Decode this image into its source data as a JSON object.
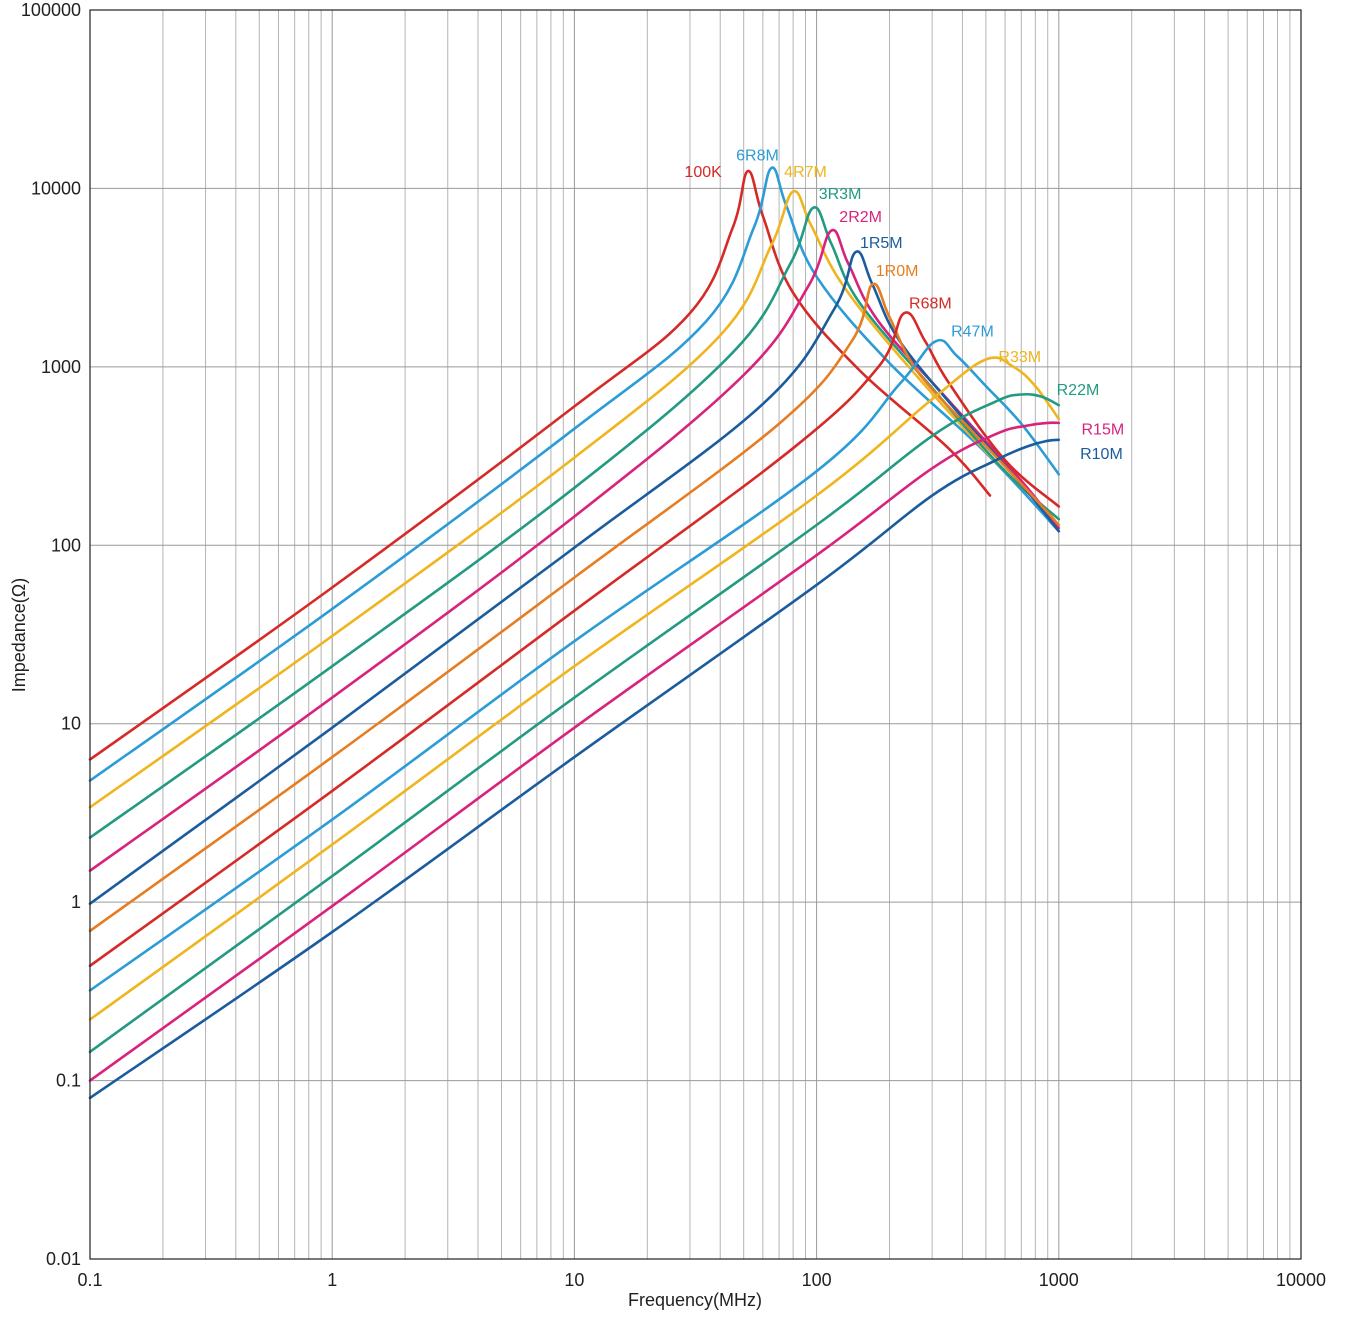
{
  "chart_data": {
    "type": "line",
    "title": "",
    "xlabel": "Frequency(MHz)",
    "ylabel": "Impedance(Ω)",
    "xscale": "log",
    "yscale": "log",
    "xlim": [
      0.1,
      10000
    ],
    "ylim": [
      0.01,
      100000
    ],
    "grid": true,
    "x_ticks": [
      "0.1",
      "1",
      "10",
      "100",
      "1000",
      "10000"
    ],
    "y_ticks": [
      "0.01",
      "0.1",
      "1",
      "10",
      "100",
      "1000",
      "10000",
      "100000"
    ],
    "series": [
      {
        "name": "100K",
        "color": "#d52a27",
        "x": [
          0.1,
          1,
          10,
          30,
          45,
          52,
          60,
          80,
          150,
          350,
          520
        ],
        "y": [
          6.3,
          58,
          600,
          2000,
          6000,
          12500,
          7000,
          2600,
          960,
          350,
          190
        ]
      },
      {
        "name": "6R8M",
        "color": "#2c9cd6",
        "x": [
          0.1,
          1,
          10,
          35,
          55,
          65,
          75,
          100,
          200,
          500,
          1000
        ],
        "y": [
          4.8,
          44,
          450,
          1800,
          6000,
          13000,
          8000,
          3200,
          1050,
          330,
          120
        ]
      },
      {
        "name": "4R7M",
        "color": "#f0b41e",
        "x": [
          0.1,
          1,
          10,
          40,
          65,
          80,
          95,
          130,
          250,
          600,
          1000
        ],
        "y": [
          3.4,
          31,
          310,
          1500,
          4800,
          9600,
          6200,
          2800,
          940,
          260,
          140
        ]
      },
      {
        "name": "3R3M",
        "color": "#239a82",
        "x": [
          0.1,
          1,
          10,
          45,
          78,
          97,
          115,
          150,
          300,
          600,
          1000
        ],
        "y": [
          2.3,
          21,
          210,
          1200,
          3800,
          7800,
          4900,
          2300,
          760,
          260,
          140
        ]
      },
      {
        "name": "2R2M",
        "color": "#d8237d",
        "x": [
          0.1,
          1,
          10,
          50,
          92,
          115,
          135,
          180,
          350,
          700,
          1000
        ],
        "y": [
          1.5,
          14,
          145,
          900,
          2800,
          5800,
          3800,
          1800,
          650,
          230,
          125
        ]
      },
      {
        "name": "1R5M",
        "color": "#1b5c9e",
        "x": [
          0.1,
          1,
          10,
          60,
          118,
          145,
          170,
          220,
          400,
          700,
          1000
        ],
        "y": [
          0.98,
          9.5,
          97,
          620,
          2100,
          4400,
          2900,
          1400,
          520,
          220,
          120
        ]
      },
      {
        "name": "1R0M",
        "color": "#e77d22",
        "x": [
          0.1,
          1,
          10,
          70,
          140,
          170,
          200,
          260,
          450,
          750,
          1000
        ],
        "y": [
          0.69,
          6.5,
          66,
          480,
          1400,
          2900,
          1900,
          950,
          420,
          200,
          130
        ]
      },
      {
        "name": "R68M",
        "color": "#d52a27",
        "x": [
          0.1,
          1,
          10,
          80,
          180,
          230,
          280,
          350,
          600,
          1000
        ],
        "y": [
          0.44,
          4.2,
          43,
          350,
          1000,
          2000,
          1400,
          820,
          300,
          165
        ]
      },
      {
        "name": "R47M",
        "color": "#2c9cd6",
        "x": [
          0.1,
          1,
          10,
          100,
          220,
          310,
          380,
          500,
          700,
          1000
        ],
        "y": [
          0.32,
          2.9,
          29,
          260,
          800,
          1390,
          1150,
          780,
          480,
          250
        ]
      },
      {
        "name": "R33M",
        "color": "#f0b41e",
        "x": [
          0.1,
          1,
          10,
          100,
          300,
          500,
          650,
          800,
          1000
        ],
        "y": [
          0.22,
          2.1,
          21,
          190,
          660,
          1100,
          1000,
          780,
          510
        ]
      },
      {
        "name": "R22M",
        "color": "#239a82",
        "x": [
          0.1,
          1,
          10,
          100,
          300,
          550,
          700,
          850,
          1000
        ],
        "y": [
          0.145,
          1.4,
          14,
          130,
          410,
          640,
          700,
          680,
          610
        ]
      },
      {
        "name": "R15M",
        "color": "#d8237d",
        "x": [
          0.1,
          1,
          10,
          100,
          300,
          550,
          750,
          900,
          1000
        ],
        "y": [
          0.1,
          0.95,
          9.5,
          88,
          270,
          420,
          470,
          485,
          485
        ]
      },
      {
        "name": "R10M",
        "color": "#1b5c9e",
        "x": [
          0.1,
          1,
          10,
          100,
          300,
          550,
          750,
          900,
          1000
        ],
        "y": [
          0.08,
          0.68,
          6.5,
          60,
          190,
          300,
          360,
          385,
          390
        ]
      }
    ],
    "labels": [
      {
        "text": "100K",
        "color": "#d52a27",
        "x": 34,
        "y": 12500
      },
      {
        "text": "6R8M",
        "color": "#2c9cd6",
        "x": 57,
        "y": 15500
      },
      {
        "text": "4R7M",
        "color": "#f0b41e",
        "x": 90,
        "y": 12500
      },
      {
        "text": "3R3M",
        "color": "#239a82",
        "x": 125,
        "y": 9400
      },
      {
        "text": "2R2M",
        "color": "#d8237d",
        "x": 152,
        "y": 7000
      },
      {
        "text": "1R5M",
        "color": "#1b5c9e",
        "x": 185,
        "y": 5000
      },
      {
        "text": "1R0M",
        "color": "#e77d22",
        "x": 215,
        "y": 3500
      },
      {
        "text": "R68M",
        "color": "#d52a27",
        "x": 295,
        "y": 2300
      },
      {
        "text": "R47M",
        "color": "#2c9cd6",
        "x": 440,
        "y": 1600
      },
      {
        "text": "R33M",
        "color": "#f0b41e",
        "x": 690,
        "y": 1150
      },
      {
        "text": "R22M",
        "color": "#239a82",
        "x": 1200,
        "y": 750
      },
      {
        "text": "R15M",
        "color": "#d8237d",
        "x": 1520,
        "y": 450
      },
      {
        "text": "R10M",
        "color": "#1b5c9e",
        "x": 1500,
        "y": 330
      }
    ]
  }
}
